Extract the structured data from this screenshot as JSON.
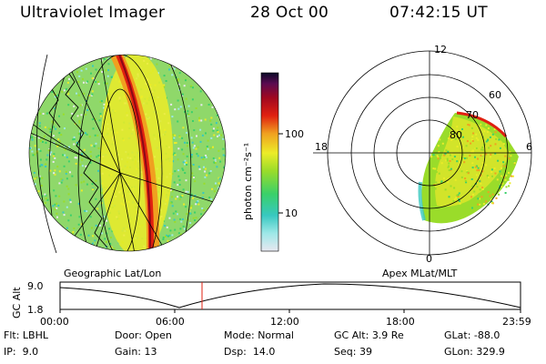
{
  "header": {
    "instrument": "Ultraviolet Imager",
    "date": "28 Oct 00",
    "time": "07:42:15 UT"
  },
  "colorbar": {
    "unit_label": "photon cm⁻²s⁻¹",
    "ticks": [
      "100",
      "10"
    ],
    "colors": [
      "#e8e8f0",
      "#9ee8e8",
      "#38c8c0",
      "#3ad06a",
      "#9adc2a",
      "#ecec28",
      "#f0a020",
      "#e02010",
      "#a00820",
      "#5a0a50",
      "#0a0a28"
    ]
  },
  "left_panel": {
    "caption": "Geographic Lat/Lon"
  },
  "right_panel": {
    "caption": "Apex MLat/MLT",
    "mlt_labels": [
      "12",
      "18",
      "6",
      "0"
    ],
    "mlat_labels": [
      "60",
      "70",
      "80"
    ]
  },
  "altitude_plot": {
    "ylabel": "GC Alt",
    "yticks": [
      "9.0",
      "1.8"
    ],
    "xticks": [
      "00:00",
      "06:00",
      "12:00",
      "18:00",
      "23:59"
    ],
    "current_time_marker": "07:42"
  },
  "status": {
    "flt_label": "Flt:",
    "flt_value": "LBHL",
    "ip_label": "IP:",
    "ip_value": "9.0",
    "door_label": "Door:",
    "door_value": "Open",
    "gain_label": "Gain:",
    "gain_value": "13",
    "mode_label": "Mode:",
    "mode_value": "Normal",
    "dsp_label": "Dsp:",
    "dsp_value": "14.0",
    "gcalt_label": "GC Alt:",
    "gcalt_value": "3.9 Re",
    "seq_label": "Seq:",
    "seq_value": "39",
    "glat_label": "GLat:",
    "glat_value": "-88.0",
    "glon_label": "GLon:",
    "glon_value": "329.9"
  }
}
